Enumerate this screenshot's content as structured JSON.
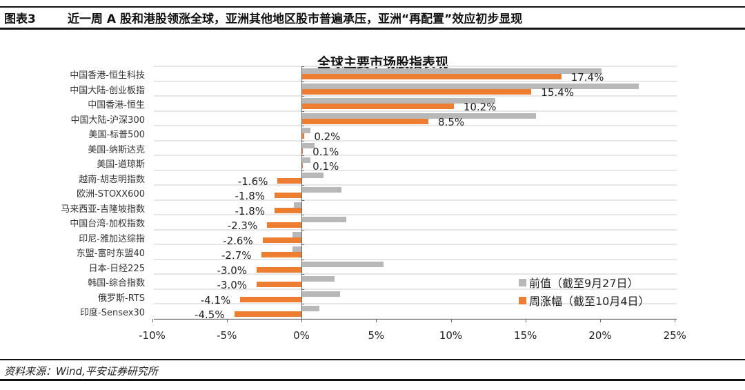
{
  "header": {
    "figure_no": "图表3",
    "title": "近一周 A 股和港股领涨全球，亚洲其他地区股市普遍承压，亚洲“再配置”效应初步显现"
  },
  "source": "资料来源：Wind,平安证券研究所",
  "colors": {
    "prev": "#b8b8b8",
    "cur": "#ed7d31"
  },
  "chart_data": {
    "type": "bar",
    "orientation": "horizontal",
    "title": "全球主要市场股指表现",
    "xlabel": "",
    "ylabel": "",
    "xlim": [
      -10,
      25
    ],
    "xticks": [
      "-10%",
      "-5%",
      "0%",
      "5%",
      "10%",
      "15%",
      "20%",
      "25%"
    ],
    "xtick_values": [
      -10,
      -5,
      0,
      5,
      10,
      15,
      20,
      25
    ],
    "grid": "horizontal",
    "legend_position": "lower right",
    "categories": [
      "中国香港-恒生科技",
      "中国大陆-创业板指",
      "中国香港-恒生",
      "中国大陆-沪深300",
      "美国-标普500",
      "美国-纳斯达克",
      "美国-道琼斯",
      "越南-胡志明指数",
      "欧洲-STOXX600",
      "马来西亚-吉隆坡指数",
      "中国台湾-加权指数",
      "印尼-雅加达综指",
      "东盟-富时东盟40",
      "日本-日经225",
      "韩国-综合指数",
      "俄罗斯-RTS",
      "印度-Sensex30"
    ],
    "series": [
      {
        "name": "前值（截至9月27日）",
        "values": [
          20.1,
          22.6,
          13.0,
          15.7,
          0.6,
          0.9,
          0.6,
          1.5,
          2.7,
          -0.5,
          3.0,
          -0.6,
          -0.6,
          5.5,
          2.2,
          2.6,
          1.2
        ]
      },
      {
        "name": "周涨幅（截至10月4日）",
        "values": [
          17.4,
          15.4,
          10.2,
          8.5,
          0.2,
          0.1,
          0.1,
          -1.6,
          -1.8,
          -1.8,
          -2.3,
          -2.6,
          -2.7,
          -3.0,
          -3.0,
          -4.1,
          -4.5
        ]
      }
    ],
    "data_labels": [
      "17.4%",
      "15.4%",
      "10.2%",
      "8.5%",
      "0.2%",
      "0.1%",
      "0.1%",
      "-1.6%",
      "-1.8%",
      "-1.8%",
      "-2.3%",
      "-2.6%",
      "-2.7%",
      "-3.0%",
      "-3.0%",
      "-4.1%",
      "-4.5%"
    ]
  }
}
